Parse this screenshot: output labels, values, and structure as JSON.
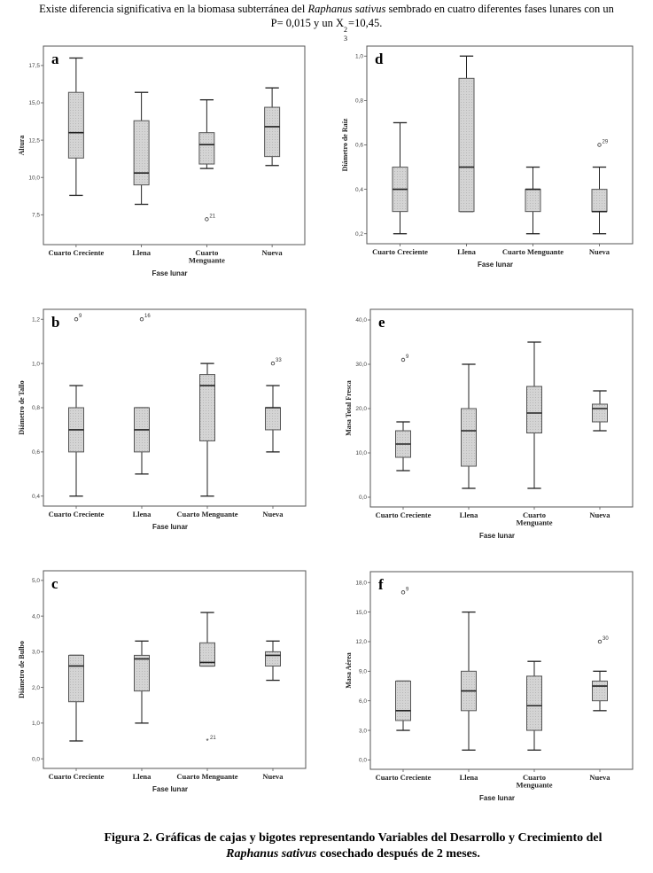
{
  "header": {
    "text_part1": "Existe diferencia significativa en la biomasa subterránea del ",
    "species": "Raphanus sativus",
    "text_part2": " sembrado en cuatro diferentes fases lunares con un",
    "line2_a": "P= 0,015 y un X",
    "line2_sup": "2",
    "line2_sub": "3",
    "line2_b": "=10,45."
  },
  "caption": {
    "line1": "Figura 2. Gráficas de cajas y bigotes representando Variables del Desarrollo y Crecimiento del",
    "species": "Raphanus sativus",
    "line2": " cosechado después de 2 meses."
  },
  "colors": {
    "box_fill": "#d4d4d4",
    "frame": "#555555",
    "median": "#222222"
  },
  "chart_data": [
    {
      "id": "a",
      "type": "boxplot",
      "panel_letter": "a",
      "ylabel": "Altura",
      "xlabel": "Fase lunar",
      "categories": [
        "Cuarto Creciente",
        "Llena",
        "Cuarto|Menguante",
        "Nueva"
      ],
      "yticks": [
        7.5,
        10.0,
        12.5,
        15.0,
        17.5
      ],
      "ytick_labels": [
        "7,5",
        "10,0",
        "12,5",
        "15,0",
        "17,5"
      ],
      "ylim": [
        5.5,
        18.8
      ],
      "boxes": [
        {
          "min": 8.8,
          "q1": 11.3,
          "median": 13.0,
          "q3": 15.7,
          "max": 18.0,
          "outliers": []
        },
        {
          "min": 8.2,
          "q1": 9.5,
          "median": 10.3,
          "q3": 13.8,
          "max": 15.7,
          "outliers": []
        },
        {
          "min": 10.6,
          "q1": 10.9,
          "median": 12.2,
          "q3": 13.0,
          "max": 15.2,
          "outliers": [
            {
              "value": 7.2,
              "label": "21",
              "marker": "circle"
            }
          ]
        },
        {
          "min": 10.8,
          "q1": 11.4,
          "median": 13.4,
          "q3": 14.7,
          "max": 16.0,
          "outliers": []
        }
      ]
    },
    {
      "id": "d",
      "type": "boxplot",
      "panel_letter": "d",
      "ylabel": "Diámetro de Raíz",
      "xlabel": "Fase lunar",
      "categories": [
        "Cuarto Creciente",
        "Llena",
        "Cuarto Menguante",
        "Nueva"
      ],
      "yticks": [
        0.2,
        0.4,
        0.6,
        0.8,
        1.0
      ],
      "ytick_labels": [
        "0,2",
        "0,4",
        "0,6",
        "0,8",
        "1,0"
      ],
      "ylim": [
        0.155,
        1.045
      ],
      "boxes": [
        {
          "min": 0.2,
          "q1": 0.3,
          "median": 0.4,
          "q3": 0.5,
          "max": 0.7,
          "outliers": []
        },
        {
          "min": 0.3,
          "q1": 0.3,
          "median": 0.5,
          "q3": 0.9,
          "max": 1.0,
          "outliers": []
        },
        {
          "min": 0.2,
          "q1": 0.3,
          "median": 0.4,
          "q3": 0.4,
          "max": 0.5,
          "outliers": []
        },
        {
          "min": 0.2,
          "q1": 0.3,
          "median": 0.3,
          "q3": 0.4,
          "max": 0.5,
          "outliers": [
            {
              "value": 0.6,
              "label": "29",
              "marker": "circle"
            }
          ]
        }
      ]
    },
    {
      "id": "b",
      "type": "boxplot",
      "panel_letter": "b",
      "ylabel": "Diámetro de Tallo",
      "xlabel": "Fase lunar",
      "categories": [
        "Cuarto Creciente",
        "Llena",
        "Cuarto Menguante",
        "Nueva"
      ],
      "yticks": [
        0.4,
        0.6,
        0.8,
        1.0,
        1.2
      ],
      "ytick_labels": [
        "0,4",
        "0,6",
        "0,8",
        "1,0",
        "1,2"
      ],
      "ylim": [
        0.355,
        1.245
      ],
      "boxes": [
        {
          "min": 0.4,
          "q1": 0.6,
          "median": 0.7,
          "q3": 0.8,
          "max": 0.9,
          "outliers": [
            {
              "value": 1.2,
              "label": "9",
              "marker": "circle"
            }
          ]
        },
        {
          "min": 0.5,
          "q1": 0.6,
          "median": 0.7,
          "q3": 0.8,
          "max": 0.8,
          "outliers": [
            {
              "value": 1.2,
              "label": "16",
              "marker": "circle"
            }
          ]
        },
        {
          "min": 0.4,
          "q1": 0.65,
          "median": 0.9,
          "q3": 0.95,
          "max": 1.0,
          "outliers": []
        },
        {
          "min": 0.6,
          "q1": 0.7,
          "median": 0.8,
          "q3": 0.8,
          "max": 0.9,
          "outliers": [
            {
              "value": 1.0,
              "label": "33",
              "marker": "circle"
            }
          ]
        }
      ]
    },
    {
      "id": "e",
      "type": "boxplot",
      "panel_letter": "e",
      "ylabel": "Masa Total Fresca",
      "xlabel": "Fase lunar",
      "categories": [
        "Cuarto Creciente",
        "Llena",
        "Cuarto|Menguante",
        "Nueva"
      ],
      "yticks": [
        0,
        10,
        20,
        30,
        40
      ],
      "ytick_labels": [
        "0,0",
        "10,0",
        "20,0",
        "30,0",
        "40,0"
      ],
      "ylim": [
        -2.2,
        42.4
      ],
      "boxes": [
        {
          "min": 6,
          "q1": 9,
          "median": 12,
          "q3": 15,
          "max": 17,
          "outliers": [
            {
              "value": 31,
              "label": "9",
              "marker": "circle"
            }
          ]
        },
        {
          "min": 2,
          "q1": 7,
          "median": 15,
          "q3": 20,
          "max": 30,
          "outliers": []
        },
        {
          "min": 2,
          "q1": 14.5,
          "median": 19,
          "q3": 25,
          "max": 35,
          "outliers": []
        },
        {
          "min": 15,
          "q1": 17,
          "median": 20,
          "q3": 21,
          "max": 24,
          "outliers": []
        }
      ]
    },
    {
      "id": "c",
      "type": "boxplot",
      "panel_letter": "c",
      "ylabel": "Diámetro de Bulbo",
      "xlabel": "Fase lunar",
      "categories": [
        "Cuarto Creciente",
        "Llena",
        "Cuarto Menguante",
        "Nueva"
      ],
      "yticks": [
        0,
        1,
        2,
        3,
        4,
        5
      ],
      "ytick_labels": [
        "0,0",
        "1,0",
        "2,0",
        "3,0",
        "4,0",
        "5,0"
      ],
      "ylim": [
        -0.27,
        5.27
      ],
      "boxes": [
        {
          "min": 0.5,
          "q1": 1.6,
          "median": 2.6,
          "q3": 2.9,
          "max": 2.9,
          "outliers": []
        },
        {
          "min": 1.0,
          "q1": 1.9,
          "median": 2.8,
          "q3": 2.9,
          "max": 3.3,
          "outliers": []
        },
        {
          "min": 2.6,
          "q1": 2.6,
          "median": 2.7,
          "q3": 3.25,
          "max": 4.1,
          "outliers": [
            {
              "value": 0.5,
              "label": "21",
              "marker": "star"
            }
          ]
        },
        {
          "min": 2.2,
          "q1": 2.6,
          "median": 2.9,
          "q3": 3.0,
          "max": 3.3,
          "outliers": []
        }
      ]
    },
    {
      "id": "f",
      "type": "boxplot",
      "panel_letter": "f",
      "ylabel": "Masa Aérea",
      "xlabel": "Fase lunar",
      "categories": [
        "Cuarto Creciente",
        "Llena",
        "Cuarto|Menguante",
        "Nueva"
      ],
      "yticks": [
        0,
        3,
        6,
        9,
        12,
        15,
        18
      ],
      "ytick_labels": [
        "0,0",
        "3,0",
        "6,0",
        "9,0",
        "12,0",
        "15,0",
        "18,0"
      ],
      "ylim": [
        -0.95,
        19.1
      ],
      "boxes": [
        {
          "min": 3,
          "q1": 4,
          "median": 5,
          "q3": 8,
          "max": 8,
          "outliers": [
            {
              "value": 17,
              "label": "9",
              "marker": "circle"
            }
          ]
        },
        {
          "min": 1,
          "q1": 5,
          "median": 7,
          "q3": 9,
          "max": 15,
          "outliers": []
        },
        {
          "min": 1,
          "q1": 3,
          "median": 5.5,
          "q3": 8.5,
          "max": 10,
          "outliers": []
        },
        {
          "min": 5,
          "q1": 6,
          "median": 7.5,
          "q3": 8,
          "max": 9,
          "outliers": [
            {
              "value": 12,
              "label": "30",
              "marker": "circle"
            }
          ]
        }
      ]
    }
  ]
}
